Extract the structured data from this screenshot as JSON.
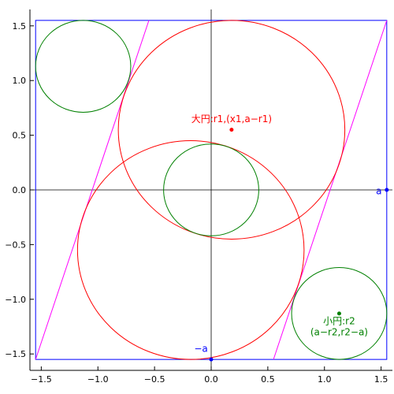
{
  "chart_data": {
    "type": "scatter",
    "xlim": [
      -1.6,
      1.6
    ],
    "ylim": [
      -1.65,
      1.65
    ],
    "grid": false,
    "xticks": [
      -1.5,
      -1.0,
      -0.5,
      0.0,
      0.5,
      1.0,
      1.5
    ],
    "xtick_labels": [
      "−1.5",
      "−1.0",
      "−0.5",
      "0.0",
      "0.5",
      "1.0",
      "1.5"
    ],
    "yticks": [
      -1.5,
      -1.0,
      -0.5,
      0.0,
      0.5,
      1.0,
      1.5
    ],
    "ytick_labels": [
      "−1.5",
      "−1.0",
      "−0.5",
      "0.0",
      "0.5",
      "1.0",
      "1.5"
    ],
    "colors": {
      "square": "#0000ff",
      "big_circles": "#ff0000",
      "small_circles": "#008000",
      "lines": "#ff00ff",
      "axes_cross": "#000000"
    },
    "square": {
      "a": 1.55
    },
    "big_circles": [
      {
        "cx": 0.18,
        "cy": 0.55,
        "r": 1.0
      },
      {
        "cx": -0.18,
        "cy": -0.55,
        "r": 1.0
      }
    ],
    "small_circles": [
      {
        "cx": -1.13,
        "cy": 1.13,
        "r": 0.42
      },
      {
        "cx": 0.0,
        "cy": 0.0,
        "r": 0.42
      },
      {
        "cx": 1.13,
        "cy": -1.13,
        "r": 0.42
      }
    ],
    "lines": [
      {
        "x1": -1.55,
        "y1": -1.55,
        "x2": -0.55,
        "y2": 1.55
      },
      {
        "x1": 0.55,
        "y1": -1.55,
        "x2": 1.55,
        "y2": 1.55
      }
    ],
    "points": [
      {
        "x": 0.18,
        "y": 0.55,
        "color": "#ff0000"
      },
      {
        "x": 1.13,
        "y": -1.13,
        "color": "#008000"
      },
      {
        "x": 1.55,
        "y": 0.0,
        "color": "#0000ff"
      },
      {
        "x": 0.0,
        "y": -1.55,
        "color": "#0000ff"
      }
    ],
    "annotations": {
      "big": {
        "text": "大円:r1,(x1,a−r1)",
        "x": 0.18,
        "y": 0.62
      },
      "small1": {
        "text": "小円:r2",
        "x": 1.13,
        "y": -1.23
      },
      "small2": {
        "text": "(a−r2,r2−a)",
        "x": 1.13,
        "y": -1.33
      },
      "a": {
        "text": "a",
        "x": 1.48,
        "y": -0.04
      },
      "neg_a": {
        "text": "−a",
        "x": -0.09,
        "y": -1.48
      }
    }
  }
}
